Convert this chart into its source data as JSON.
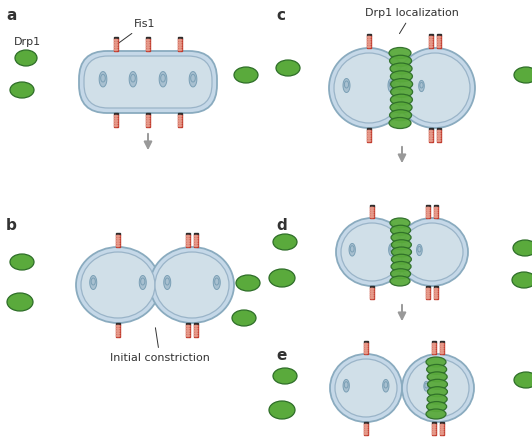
{
  "bg_color": "#ffffff",
  "mito_fill": "#c5d8e8",
  "mito_edge": "#8aabbf",
  "mito_inner_fill": "#d0dfe8",
  "mito_inner_edge": "#9ab4c8",
  "cristae_fill": "#a8c0d0",
  "cristae_edge": "#7a9fb5",
  "fis1_red": "#c0392b",
  "fis1_light": "#e8a090",
  "fis1_dark": "#2c2c2c",
  "drp1_fill": "#5aaa3c",
  "drp1_edge": "#2e6e28",
  "arrow_color": "#999999",
  "text_color": "#333333",
  "panel_labels": [
    "a",
    "b",
    "c",
    "d",
    "e"
  ],
  "label_fis1": "Fis1",
  "label_drp1": "Drp1",
  "label_drp1_loc": "Drp1 localization",
  "label_constriction": "Initial constriction",
  "fs_panel": 11,
  "fs_text": 8
}
